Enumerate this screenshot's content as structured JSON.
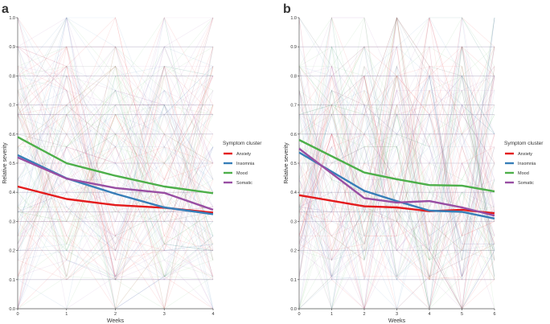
{
  "chart_data": [
    {
      "type": "line",
      "panel_label": "a",
      "xlabel": "Weeks",
      "ylabel": "Relative severity",
      "xlim": [
        0,
        4
      ],
      "ylim": [
        0,
        1
      ],
      "x_ticks": [
        "0",
        "1",
        "2",
        "3",
        "4"
      ],
      "y_ticks": [
        "0.0",
        "0.1",
        "0.2",
        "0.3",
        "0.4",
        "0.5",
        "0.6",
        "0.7",
        "0.8",
        "0.9",
        "1.0"
      ],
      "x": [
        0,
        1,
        2,
        3,
        4
      ],
      "legend_title": "Symptom cluster",
      "legend_placement": "right",
      "series": [
        {
          "name": "Anxiety",
          "color": "#e41a1c",
          "values": [
            0.42,
            0.377,
            0.356,
            0.347,
            0.33
          ]
        },
        {
          "name": "Insomnia",
          "color": "#377eb8",
          "values": [
            0.528,
            0.448,
            0.395,
            0.348,
            0.325
          ]
        },
        {
          "name": "Mood",
          "color": "#4daf4a",
          "values": [
            0.59,
            0.5,
            0.457,
            0.42,
            0.397
          ]
        },
        {
          "name": "Somatic",
          "color": "#984ea3",
          "values": [
            0.52,
            0.447,
            0.415,
            0.398,
            0.34
          ]
        }
      ]
    },
    {
      "type": "line",
      "panel_label": "b",
      "xlabel": "Weeks",
      "ylabel": "Relative severity",
      "xlim": [
        0,
        6
      ],
      "ylim": [
        0,
        1
      ],
      "x_ticks": [
        "0",
        "1",
        "2",
        "3",
        "4",
        "5",
        "6"
      ],
      "y_ticks": [
        "0.0",
        "0.1",
        "0.2",
        "0.3",
        "0.4",
        "0.5",
        "0.6",
        "0.7",
        "0.8",
        "0.9",
        "1.0"
      ],
      "x": [
        0,
        2,
        3,
        4,
        5,
        6
      ],
      "legend_title": "Symptom cluster",
      "legend_placement": "right",
      "series": [
        {
          "name": "Anxiety",
          "color": "#e41a1c",
          "values": [
            0.39,
            0.352,
            0.348,
            0.335,
            0.34,
            0.328
          ]
        },
        {
          "name": "Insomnia",
          "color": "#377eb8",
          "values": [
            0.537,
            0.405,
            0.37,
            0.337,
            0.333,
            0.31
          ]
        },
        {
          "name": "Mood",
          "color": "#4daf4a",
          "values": [
            0.58,
            0.468,
            0.445,
            0.425,
            0.423,
            0.403
          ]
        },
        {
          "name": "Somatic",
          "color": "#984ea3",
          "values": [
            0.55,
            0.38,
            0.365,
            0.37,
            0.348,
            0.32
          ]
        }
      ]
    }
  ]
}
